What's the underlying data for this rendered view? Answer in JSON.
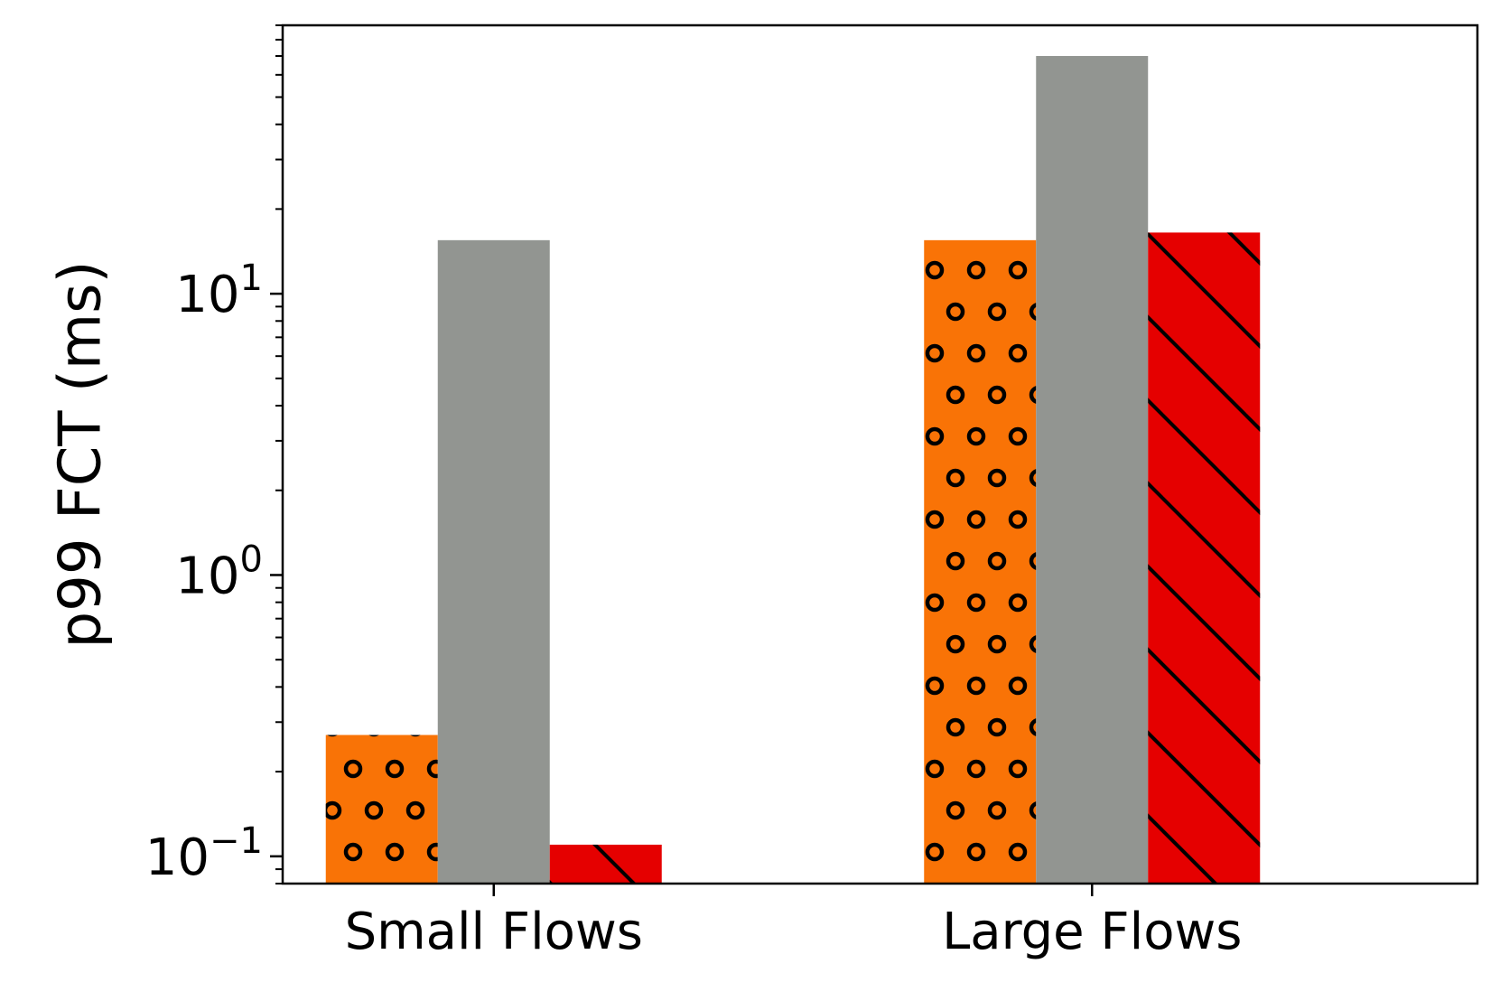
{
  "chart_data": {
    "type": "bar",
    "categories": [
      "Small Flows",
      "Large Flows"
    ],
    "series": [
      {
        "values": [
          0.27,
          15.5
        ],
        "color": "#f97306",
        "hatch": "circles"
      },
      {
        "values": [
          15.5,
          70
        ],
        "color": "#929591",
        "hatch": "none"
      },
      {
        "values": [
          0.11,
          16.5
        ],
        "color": "#e50000",
        "hatch": "diagonal"
      }
    ],
    "ylabel": "p99 FCT (ms)",
    "yscale": "log",
    "ylim": [
      0.08,
      90
    ],
    "yticks": [
      {
        "value": 0.1,
        "base": "10",
        "exp": "−1"
      },
      {
        "value": 1,
        "base": "10",
        "exp": "0"
      },
      {
        "value": 10,
        "base": "10",
        "exp": "1"
      }
    ],
    "grid": false,
    "legend": "none"
  }
}
